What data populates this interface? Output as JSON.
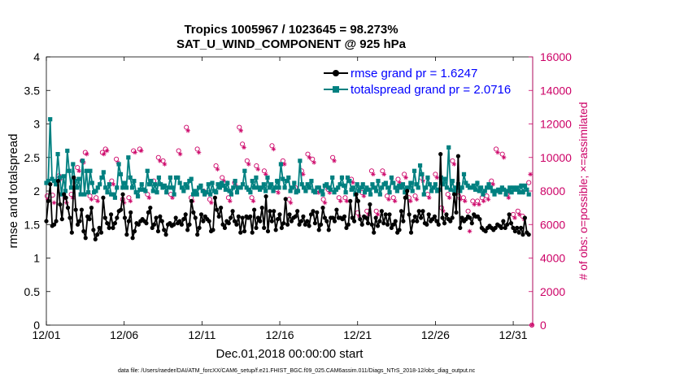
{
  "chart_data": {
    "type": "line",
    "title_line1": "Tropics 1005967 / 1023645 = 98.273%",
    "title_line2": "SAT_U_WIND_COMPONENT @ 925 hPa",
    "xlabel": "Dec.01,2018 00:00:00 start",
    "ylabel_left": "rmse and totalspread",
    "ylabel_right": "# of obs: o=possible; ×=assimilated",
    "footnote": "data file: /Users/raeder/DAI/ATM_forcXX/CAM6_setup/f.e21.FHIST_BGC.f09_025.CAM6assim.011/Diags_NTrS_2018-12/obs_diag_output.nc",
    "x_range_days": [
      0,
      31.25
    ],
    "xticks": [
      {
        "day": 0,
        "label": "12/01"
      },
      {
        "day": 5,
        "label": "12/06"
      },
      {
        "day": 10,
        "label": "12/11"
      },
      {
        "day": 15,
        "label": "12/16"
      },
      {
        "day": 20,
        "label": "12/21"
      },
      {
        "day": 25,
        "label": "12/26"
      },
      {
        "day": 30,
        "label": "12/31"
      }
    ],
    "ylim_left": [
      0,
      4
    ],
    "yticks_left": [
      "0",
      "0.5",
      "1",
      "1.5",
      "2",
      "2.5",
      "3",
      "3.5",
      "4"
    ],
    "ylim_right": [
      0,
      16000
    ],
    "yticks_right": [
      "0",
      "2000",
      "4000",
      "6000",
      "8000",
      "10000",
      "12000",
      "14000",
      "16000"
    ],
    "colors": {
      "rmse": "#000000",
      "spread": "#008080",
      "obs": "#cc0066"
    },
    "series": [
      {
        "name": "rmse",
        "legend": "rmse grand pr = 1.6247",
        "values": [
          1.55,
          1.85,
          2.1,
          1.48,
          1.5,
          1.55,
          2.15,
          1.8,
          1.58,
          1.95,
          1.9,
          1.75,
          1.6,
          1.38,
          2.2,
          1.72,
          1.5,
          1.55,
          1.72,
          1.4,
          1.3,
          1.62,
          1.58,
          1.75,
          1.42,
          1.28,
          1.35,
          1.45,
          1.38,
          1.9,
          1.6,
          1.52,
          1.45,
          1.65,
          1.45,
          1.52,
          1.6,
          1.7,
          1.72,
          1.95,
          1.6,
          1.35,
          1.55,
          1.68,
          1.3,
          1.4,
          1.52,
          1.5,
          1.55,
          1.58,
          1.55,
          1.52,
          1.68,
          1.75,
          1.45,
          1.5,
          1.6,
          1.4,
          1.62,
          1.55,
          1.42,
          1.35,
          1.5,
          1.52,
          1.48,
          1.5,
          1.6,
          1.52,
          1.55,
          1.5,
          1.58,
          1.65,
          1.42,
          1.5,
          1.85,
          1.68,
          1.6,
          1.35,
          1.45,
          1.65,
          1.55,
          1.62,
          1.58,
          1.55,
          1.4,
          1.42,
          1.9,
          1.72,
          1.62,
          1.75,
          1.5,
          1.45,
          1.55,
          1.52,
          1.6,
          1.7,
          1.55,
          1.5,
          1.62,
          1.38,
          1.6,
          1.4,
          1.62,
          1.6,
          1.62,
          1.38,
          1.72,
          1.45,
          1.6,
          1.55,
          1.75,
          1.45,
          1.92,
          1.4,
          1.7,
          1.55,
          1.7,
          1.42,
          1.58,
          1.65,
          1.45,
          1.52,
          1.88,
          1.5,
          1.65,
          1.55,
          1.6,
          1.62,
          1.7,
          1.5,
          1.55,
          1.62,
          1.5,
          1.55,
          1.48,
          1.65,
          1.7,
          1.52,
          1.68,
          1.42,
          1.5,
          1.75,
          1.6,
          1.55,
          1.42,
          1.6,
          1.6,
          1.55,
          1.72,
          1.6,
          1.6,
          1.58,
          1.62,
          1.45,
          1.5,
          1.85,
          1.6,
          1.55,
          1.95,
          1.85,
          1.58,
          1.5,
          1.62,
          1.6,
          1.52,
          1.8,
          1.5,
          1.38,
          1.6,
          1.48,
          1.55,
          1.7,
          1.52,
          1.65,
          1.5,
          1.65,
          1.45,
          1.5,
          1.55,
          1.38,
          1.42,
          1.7,
          1.55,
          1.9,
          2.0,
          1.65,
          1.38,
          1.55,
          1.62,
          1.55,
          1.7,
          1.6,
          1.7,
          1.52,
          1.5,
          1.65,
          1.55,
          1.58,
          1.62,
          1.55,
          1.5,
          2.55,
          1.6,
          1.52,
          1.65,
          1.58,
          1.55,
          1.6,
          1.95,
          1.68,
          2.52,
          1.45,
          1.6,
          1.55,
          1.58,
          1.62,
          1.6,
          1.52,
          1.65,
          1.62,
          1.62,
          1.58,
          1.45,
          1.42,
          1.4,
          1.45,
          1.48,
          1.45,
          1.42,
          1.45,
          1.5,
          1.48,
          1.45,
          1.55,
          1.45,
          1.5,
          1.65,
          1.52,
          1.45,
          1.4,
          1.45,
          1.38,
          1.45,
          1.35,
          1.6,
          1.38,
          1.35
        ]
      },
      {
        "name": "totalspread",
        "legend": "totalspread grand pr = 2.0716",
        "values": [
          2.12,
          2.15,
          3.07,
          2.18,
          2.15,
          2.1,
          2.55,
          2.2,
          1.95,
          2.22,
          2.0,
          2.6,
          2.3,
          2.05,
          2.4,
          2.15,
          2.05,
          2.18,
          1.95,
          2.45,
          1.95,
          2.3,
          1.98,
          2.3,
          2.12,
          1.98,
          2.0,
          2.05,
          2.1,
          2.2,
          2.28,
          2.05,
          1.98,
          2.1,
          1.95,
          1.95,
          1.9,
          2.05,
          2.4,
          2.25,
          2.05,
          2.12,
          2.05,
          2.5,
          2.2,
          2.05,
          2.15,
          1.98,
          1.92,
          2.02,
          2.1,
          2.02,
          2.0,
          2.3,
          2.1,
          2.15,
          2.0,
          2.1,
          1.98,
          2.2,
          2.1,
          2.05,
          2.08,
          1.98,
          2.05,
          2.2,
          2.05,
          1.95,
          2.2,
          2.2,
          2.12,
          2.05,
          2.0,
          2.1,
          2.05,
          2.15,
          2.18,
          1.95,
          2.0,
          1.95,
          2.05,
          2.08,
          2.0,
          1.95,
          1.98,
          2.1,
          1.95,
          2.12,
          2.0,
          1.98,
          2.1,
          2.05,
          2.12,
          2.08,
          2.02,
          2.12,
          2.0,
          1.95,
          2.05,
          2.15,
          1.98,
          2.05,
          2.05,
          2.1,
          2.3,
          2.05,
          2.02,
          1.98,
          2.15,
          2.05,
          2.2,
          2.05,
          2.02,
          2.05,
          2.1,
          2.0,
          2.2,
          2.05,
          2.1,
          2.0,
          2.05,
          2.15,
          2.05,
          2.4,
          2.18,
          2.05,
          2.15,
          2.2,
          2.0,
          2.05,
          2.12,
          1.98,
          2.0,
          2.45,
          2.1,
          2.05,
          2.0,
          2.1,
          2.05,
          2.15,
          2.0,
          1.98,
          2.05,
          2.05,
          2.0,
          1.95,
          2.08,
          2.1,
          2.05,
          2.02,
          2.2,
          1.98,
          2.02,
          2.05,
          2.1,
          2.2,
          2.08,
          1.98,
          2.2,
          2.15,
          2.02,
          2.05,
          1.95,
          2.1,
          2.0,
          2.05,
          2.1,
          1.98,
          2.05,
          2.02,
          1.95,
          2.1,
          2.05,
          2.0,
          2.15,
          1.95,
          2.05,
          2.1,
          2.12,
          2.05,
          1.98,
          2.2,
          2.12,
          2.05,
          2.0,
          2.08,
          2.05,
          2.1,
          1.98,
          2.05,
          2.05,
          2.12,
          2.0,
          2.3,
          2.1,
          2.05,
          2.38,
          2.25,
          1.95,
          2.05,
          2.2,
          2.1,
          2.0,
          2.05,
          2.1,
          2.0,
          2.02,
          2.2,
          2.1,
          2.18,
          2.05,
          2.65,
          2.02,
          2.15,
          2.0,
          2.05,
          2.1,
          2.0,
          2.05,
          2.25,
          2.12,
          2.08,
          2.05,
          2.05,
          2.08,
          2.02,
          2.12,
          2.0,
          2.05,
          1.95,
          2.0,
          2.05,
          2.1,
          2.05,
          2.0,
          1.95,
          2.0,
          2.02,
          1.98,
          2.05,
          2.02,
          1.95,
          2.0,
          2.05,
          1.98,
          2.05,
          2.02,
          2.05,
          1.98,
          2.08,
          1.98,
          2.08,
          2.02,
          1.95
        ]
      }
    ],
    "obs_possible": [
      [
        0.05,
        7700
      ],
      [
        0.4,
        7750
      ],
      [
        0.8,
        8900
      ],
      [
        1.2,
        7600
      ],
      [
        1.6,
        7800
      ],
      [
        2.0,
        9400
      ],
      [
        2.3,
        9800
      ],
      [
        2.5,
        10300
      ],
      [
        2.8,
        7700
      ],
      [
        3.2,
        7600
      ],
      [
        3.6,
        10300
      ],
      [
        3.8,
        10500
      ],
      [
        4.2,
        8600
      ],
      [
        4.5,
        9900
      ],
      [
        4.9,
        7500
      ],
      [
        5.3,
        7600
      ],
      [
        5.6,
        10400
      ],
      [
        6.0,
        10500
      ],
      [
        6.5,
        7800
      ],
      [
        6.9,
        8600
      ],
      [
        7.2,
        10000
      ],
      [
        7.5,
        9800
      ],
      [
        8.0,
        7800
      ],
      [
        8.5,
        10400
      ],
      [
        9.0,
        11800
      ],
      [
        9.3,
        7600
      ],
      [
        9.7,
        10500
      ],
      [
        10.1,
        8000
      ],
      [
        10.5,
        7500
      ],
      [
        10.9,
        9500
      ],
      [
        11.3,
        8800
      ],
      [
        11.7,
        7600
      ],
      [
        12.1,
        8500
      ],
      [
        12.4,
        11800
      ],
      [
        12.6,
        10800
      ],
      [
        12.9,
        9800
      ],
      [
        13.2,
        7600
      ],
      [
        13.5,
        9500
      ],
      [
        14.0,
        9200
      ],
      [
        14.5,
        10700
      ],
      [
        14.8,
        8100
      ],
      [
        15.2,
        9800
      ],
      [
        15.6,
        7500
      ],
      [
        16.0,
        8200
      ],
      [
        16.4,
        9200
      ],
      [
        16.8,
        10200
      ],
      [
        17.1,
        9900
      ],
      [
        17.4,
        8100
      ],
      [
        17.8,
        7500
      ],
      [
        18.1,
        8100
      ],
      [
        18.4,
        10000
      ],
      [
        18.8,
        7600
      ],
      [
        19.2,
        7600
      ],
      [
        19.6,
        8700
      ],
      [
        20.0,
        6700
      ],
      [
        20.3,
        7900
      ],
      [
        20.6,
        6800
      ],
      [
        20.9,
        9200
      ],
      [
        21.2,
        6800
      ],
      [
        21.6,
        9200
      ],
      [
        21.9,
        7700
      ],
      [
        22.3,
        7600
      ],
      [
        22.6,
        8700
      ],
      [
        23.0,
        9000
      ],
      [
        23.3,
        7600
      ],
      [
        23.7,
        7700
      ],
      [
        24.1,
        8800
      ],
      [
        24.5,
        7800
      ],
      [
        25.0,
        9000
      ],
      [
        25.4,
        7000
      ],
      [
        25.8,
        7800
      ],
      [
        26.1,
        9800
      ],
      [
        26.5,
        7700
      ],
      [
        26.8,
        7600
      ],
      [
        27.1,
        6800
      ],
      [
        27.4,
        7400
      ],
      [
        27.7,
        7400
      ],
      [
        28.0,
        7600
      ],
      [
        28.3,
        7700
      ],
      [
        28.6,
        8600
      ],
      [
        28.9,
        10500
      ],
      [
        29.3,
        10200
      ],
      [
        29.6,
        7800
      ],
      [
        30.0,
        6600
      ],
      [
        30.3,
        6800
      ],
      [
        30.6,
        6500
      ],
      [
        31.0,
        8500
      ],
      [
        31.2,
        0
      ]
    ],
    "obs_assimilated": [
      [
        0.1,
        7500
      ],
      [
        0.5,
        7300
      ],
      [
        0.9,
        8700
      ],
      [
        1.3,
        7300
      ],
      [
        1.7,
        7600
      ],
      [
        2.1,
        9200
      ],
      [
        2.4,
        9700
      ],
      [
        2.6,
        10200
      ],
      [
        2.9,
        7500
      ],
      [
        3.3,
        7400
      ],
      [
        3.7,
        10200
      ],
      [
        3.9,
        10400
      ],
      [
        4.3,
        8400
      ],
      [
        4.6,
        9700
      ],
      [
        5.0,
        7300
      ],
      [
        5.4,
        7400
      ],
      [
        5.7,
        10300
      ],
      [
        6.1,
        10400
      ],
      [
        6.6,
        7600
      ],
      [
        7.0,
        8400
      ],
      [
        7.3,
        9800
      ],
      [
        7.6,
        9600
      ],
      [
        8.1,
        7600
      ],
      [
        8.6,
        10200
      ],
      [
        9.1,
        11600
      ],
      [
        9.4,
        7400
      ],
      [
        9.8,
        10300
      ],
      [
        10.2,
        7800
      ],
      [
        10.6,
        7300
      ],
      [
        11.0,
        9300
      ],
      [
        11.4,
        8600
      ],
      [
        11.8,
        7400
      ],
      [
        12.2,
        8300
      ],
      [
        12.5,
        11600
      ],
      [
        12.7,
        10600
      ],
      [
        13.0,
        9600
      ],
      [
        13.3,
        7400
      ],
      [
        13.6,
        9300
      ],
      [
        14.1,
        9000
      ],
      [
        14.6,
        10500
      ],
      [
        14.9,
        7900
      ],
      [
        15.3,
        9600
      ],
      [
        15.7,
        7300
      ],
      [
        16.1,
        8000
      ],
      [
        16.5,
        9000
      ],
      [
        16.9,
        10000
      ],
      [
        17.2,
        9700
      ],
      [
        17.5,
        7900
      ],
      [
        17.9,
        7300
      ],
      [
        18.2,
        7900
      ],
      [
        18.5,
        9800
      ],
      [
        18.9,
        7400
      ],
      [
        19.3,
        7400
      ],
      [
        19.7,
        8500
      ],
      [
        20.1,
        6500
      ],
      [
        20.4,
        7700
      ],
      [
        20.7,
        6600
      ],
      [
        21.0,
        9000
      ],
      [
        21.3,
        6600
      ],
      [
        21.7,
        9000
      ],
      [
        22.0,
        7500
      ],
      [
        22.4,
        7400
      ],
      [
        22.7,
        8500
      ],
      [
        23.1,
        8800
      ],
      [
        23.4,
        7400
      ],
      [
        23.8,
        7500
      ],
      [
        24.2,
        8600
      ],
      [
        24.6,
        7600
      ],
      [
        25.1,
        8800
      ],
      [
        25.5,
        6800
      ],
      [
        25.9,
        7600
      ],
      [
        26.2,
        9600
      ],
      [
        26.6,
        7500
      ],
      [
        26.9,
        7400
      ],
      [
        27.2,
        5600
      ],
      [
        27.5,
        7200
      ],
      [
        27.8,
        7200
      ],
      [
        28.1,
        7400
      ],
      [
        28.4,
        7500
      ],
      [
        28.7,
        8400
      ],
      [
        29.0,
        10300
      ],
      [
        29.4,
        10000
      ],
      [
        29.7,
        7600
      ],
      [
        30.1,
        6400
      ],
      [
        30.4,
        6600
      ],
      [
        30.7,
        6300
      ],
      [
        31.1,
        9000
      ],
      [
        31.2,
        0
      ]
    ]
  }
}
